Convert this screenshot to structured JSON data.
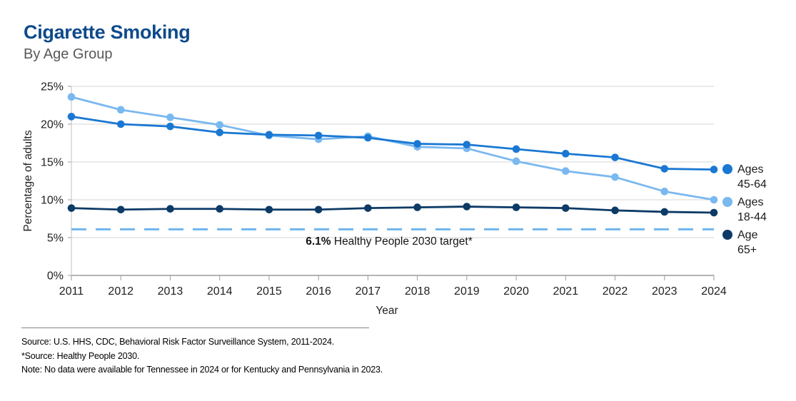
{
  "header": {
    "title": "Cigarette Smoking",
    "subtitle": "By Age Group",
    "title_color": "#0e4a8b"
  },
  "chart_data": {
    "type": "line",
    "title": "Cigarette Smoking",
    "subtitle": "By Age Group",
    "x": [
      2011,
      2012,
      2013,
      2014,
      2015,
      2016,
      2017,
      2018,
      2019,
      2020,
      2021,
      2022,
      2023,
      2024
    ],
    "series": [
      {
        "name": "Ages 45-64",
        "legend_label": "Ages\n45-64",
        "color": "#1a78d2",
        "values": [
          21.0,
          20.0,
          19.7,
          18.9,
          18.6,
          18.5,
          18.2,
          17.4,
          17.3,
          16.7,
          16.1,
          15.6,
          14.1,
          14.0
        ]
      },
      {
        "name": "Ages 18-44",
        "legend_label": "Ages\n18-44",
        "color": "#7ab8f0",
        "values": [
          23.6,
          21.9,
          20.9,
          19.9,
          18.5,
          18.0,
          18.4,
          17.0,
          16.8,
          15.1,
          13.8,
          13.0,
          11.1,
          10.0
        ]
      },
      {
        "name": "Age 65+",
        "legend_label": "Age\n65+",
        "color": "#0d3a66",
        "values": [
          8.9,
          8.7,
          8.8,
          8.8,
          8.7,
          8.7,
          8.9,
          9.0,
          9.1,
          9.0,
          8.9,
          8.6,
          8.4,
          8.3
        ]
      }
    ],
    "xlabel": "Year",
    "ylabel": "Percentage of adults",
    "ylim": [
      0,
      25
    ],
    "yticks": [
      0,
      5,
      10,
      15,
      20,
      25
    ],
    "ytick_labels": [
      "0%",
      "5%",
      "10%",
      "15%",
      "20%",
      "25%"
    ],
    "grid": true,
    "legend_position": "right",
    "target_line": {
      "value": 6.1,
      "color": "#6fb5ee",
      "label_bold": "6.1%",
      "label_rest": " Healthy People 2030 target*"
    },
    "colors": {
      "gridline": "#d4d4d4",
      "axis": "#9b9b9b",
      "tick_text": "#1f1f1f"
    }
  },
  "footer": {
    "source_line1": "Source: U.S. HHS, CDC, Behavioral Risk Factor Surveillance System, 2011-2024.",
    "source_line2": "*Source: Healthy People 2030.",
    "note": "Note: No data were available for Tennessee in 2024 or for Kentucky and Pennsylvania in 2023."
  }
}
